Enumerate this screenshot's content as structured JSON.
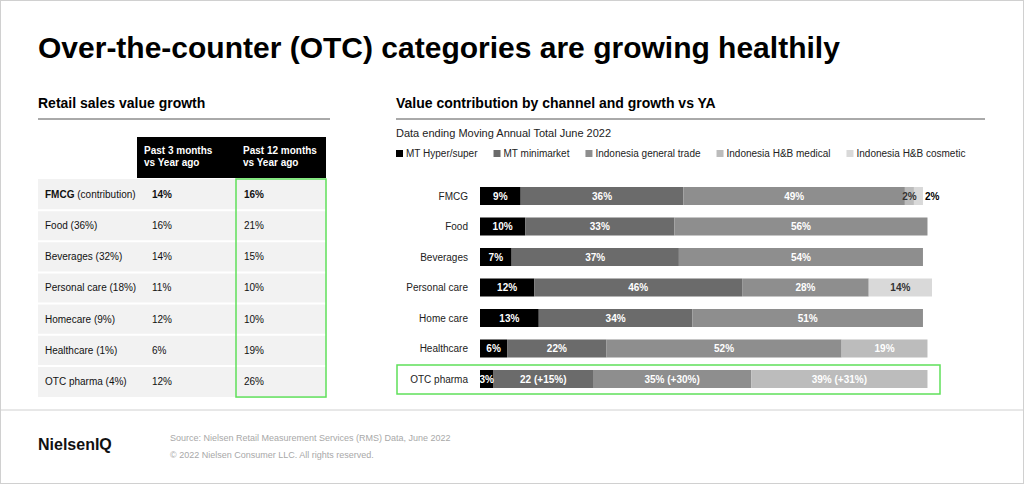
{
  "title": "Over-the-counter (OTC) categories are growing healthily",
  "table": {
    "title": "Retail sales value growth",
    "columns": [
      "Past 3 months vs Year ago",
      "Past 12 months vs Year ago"
    ],
    "rows": [
      {
        "name": "FMCG",
        "share": "(contribution)",
        "values": [
          "14%",
          "16%"
        ]
      },
      {
        "name": "Food",
        "share": "(36%)",
        "values": [
          "16%",
          "21%"
        ]
      },
      {
        "name": "Beverages",
        "share": "(32%)",
        "values": [
          "14%",
          "15%"
        ]
      },
      {
        "name": "Personal care",
        "share": "(18%)",
        "values": [
          "11%",
          "10%"
        ]
      },
      {
        "name": "Homecare",
        "share": "(9%)",
        "values": [
          "12%",
          "10%"
        ]
      },
      {
        "name": "Healthcare",
        "share": "(1%)",
        "values": [
          "6%",
          "19%"
        ]
      },
      {
        "name": "OTC pharma",
        "share": "(4%)",
        "values": [
          "12%",
          "26%"
        ]
      }
    ]
  },
  "chart_data": {
    "type": "bar",
    "orientation": "horizontal",
    "stacked": true,
    "data_labels": true,
    "tick_labels": "y",
    "legend": "top",
    "title": "Value contribution by channel and growth vs YA",
    "subtitle": "Data ending Moving Annual Total June 2022",
    "categories": [
      "FMCG",
      "Food",
      "Beverages",
      "Personal care",
      "Home care",
      "Healthcare",
      "OTC pharma"
    ],
    "xlim": [
      0,
      100
    ],
    "series": [
      {
        "name": "MT Hyper/super",
        "color": "#000000",
        "values": [
          9,
          10,
          7,
          12,
          13,
          6,
          3
        ],
        "value_labels": [
          "9%",
          "10%",
          "7%",
          "12%",
          "13%",
          "6%",
          "3%"
        ]
      },
      {
        "name": "MT minimarket",
        "color": "#6b6b6b",
        "values": [
          36,
          33,
          37,
          46,
          34,
          22,
          22
        ],
        "value_labels": [
          "36%",
          "33%",
          "37%",
          "46%",
          "34%",
          "22%",
          "22 (+15%)"
        ]
      },
      {
        "name": "Indonesia general trade",
        "color": "#8e8e8e",
        "values": [
          49,
          56,
          54,
          28,
          51,
          52,
          35
        ],
        "value_labels": [
          "49%",
          "56%",
          "54%",
          "28%",
          "51%",
          "52%",
          "35% (+30%)"
        ]
      },
      {
        "name": "Indonesia H&B medical",
        "color": "#bcbcbc",
        "values": [
          2,
          null,
          null,
          null,
          null,
          19,
          39
        ],
        "value_labels": [
          "2%",
          null,
          null,
          null,
          null,
          "19%",
          "39% (+31%)"
        ]
      },
      {
        "name": "Indonesia H&B cosmetic",
        "color": "#d9d9d9",
        "values": [
          2,
          null,
          null,
          14,
          null,
          null,
          null
        ],
        "value_labels": [
          "2%",
          null,
          null,
          "14%",
          null,
          null,
          null
        ]
      }
    ]
  },
  "footer": {
    "logo": "NielsenIQ",
    "source": "Source: Nielsen Retail Measurement Services (RMS) Data, June 2022",
    "copyright": "© 2022 Nielsen Consumer LLC. All rights reserved."
  }
}
